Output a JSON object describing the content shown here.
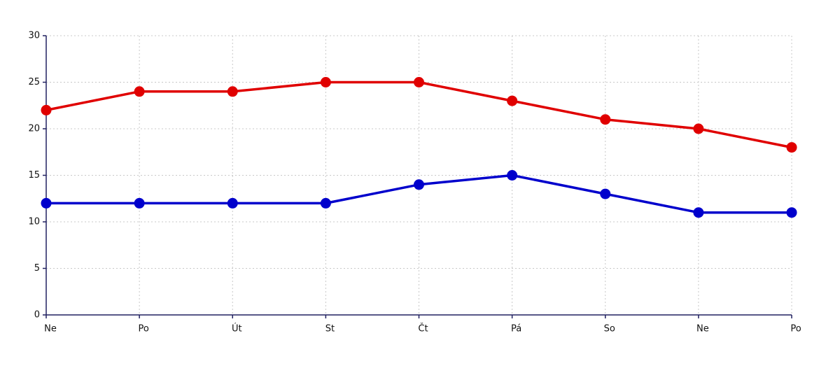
{
  "chart_data": {
    "type": "line",
    "categories": [
      "Ne",
      "Po",
      "Út",
      "St",
      "Čt",
      "Pá",
      "So",
      "Ne",
      "Po"
    ],
    "series": [
      {
        "color": "#e00000",
        "values": [
          22,
          24,
          24,
          25,
          25,
          23,
          21,
          20,
          18
        ]
      },
      {
        "color": "#0000cc",
        "values": [
          12,
          12,
          12,
          12,
          14,
          15,
          13,
          11,
          11
        ]
      }
    ],
    "ylim": [
      0,
      30
    ],
    "yticks": [
      0,
      5,
      10,
      15,
      20,
      25,
      30
    ],
    "grid": true
  }
}
